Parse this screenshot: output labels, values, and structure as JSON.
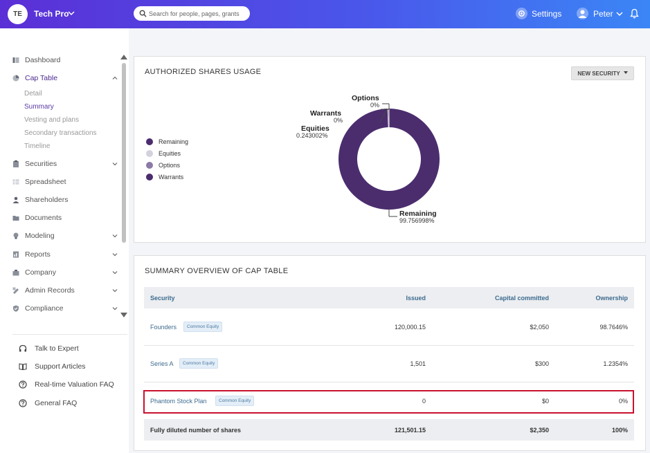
{
  "header": {
    "logo_initials": "TE",
    "company_name": "Tech Pro",
    "search_placeholder": "Search for people, pages, grants",
    "settings_label": "Settings",
    "user_name": "Peter"
  },
  "sidebar": {
    "items": [
      {
        "label": "Dashboard",
        "icon": "dashboard-icon"
      },
      {
        "label": "Cap Table",
        "icon": "pie-chart-icon",
        "expanded": true
      },
      {
        "label": "Securities",
        "icon": "clipboard-icon"
      },
      {
        "label": "Spreadsheet",
        "icon": "spreadsheet-icon"
      },
      {
        "label": "Shareholders",
        "icon": "person-icon"
      },
      {
        "label": "Documents",
        "icon": "folder-icon"
      },
      {
        "label": "Modeling",
        "icon": "lightbulb-icon"
      },
      {
        "label": "Reports",
        "icon": "reports-icon"
      },
      {
        "label": "Company",
        "icon": "building-icon"
      },
      {
        "label": "Admin Records",
        "icon": "records-icon"
      },
      {
        "label": "Compliance",
        "icon": "shield-check-icon"
      }
    ],
    "cap_table_sub": [
      "Detail",
      "Summary",
      "Vesting and plans",
      "Secondary transactions",
      "Timeline"
    ],
    "help": [
      "Talk to Expert",
      "Support Articles",
      "Real-time Valuation FAQ",
      "General FAQ"
    ]
  },
  "usage_card": {
    "title": "AUTHORIZED SHARES USAGE",
    "new_security_label": "NEW SECURITY",
    "legend": [
      {
        "label": "Remaining",
        "color": "#4b2d6e"
      },
      {
        "label": "Equities",
        "color": "#d5d1dc"
      },
      {
        "label": "Options",
        "color": "#8b7aa6"
      },
      {
        "label": "Warrants",
        "color": "#4b2d6e"
      }
    ],
    "donut": {
      "options": {
        "label": "Options",
        "value": "0%"
      },
      "warrants": {
        "label": "Warrants",
        "value": "0%"
      },
      "equities": {
        "label": "Equities",
        "value": "0.243002%"
      },
      "remaining": {
        "label": "Remaining",
        "value": "99.756998%"
      }
    }
  },
  "chart_data": {
    "type": "pie",
    "categories": [
      "Remaining",
      "Equities",
      "Options",
      "Warrants"
    ],
    "values": [
      99.756998,
      0.243002,
      0,
      0
    ],
    "title": "AUTHORIZED SHARES USAGE",
    "legend": "left"
  },
  "summary_card": {
    "title": "SUMMARY OVERVIEW OF CAP TABLE",
    "columns": [
      "Security",
      "Issued",
      "Capital committed",
      "Ownership"
    ],
    "rows": [
      {
        "security": "Founders",
        "tag": "Common Equity",
        "issued": "120,000.15",
        "capital": "$2,050",
        "ownership": "98.7646%"
      },
      {
        "security": "Series A",
        "tag": "Common Equity",
        "issued": "1,501",
        "capital": "$300",
        "ownership": "1.2354%"
      },
      {
        "security": "Phantom Stock Plan",
        "tag": "Common Equity",
        "issued": "0",
        "capital": "$0",
        "ownership": "0%"
      }
    ],
    "footer": {
      "label": "Fully diluted number of shares",
      "issued": "121,501.15",
      "capital": "$2,350",
      "ownership": "100%"
    }
  },
  "colors": {
    "accent": "#4b2a8f",
    "link": "#3d6b8f",
    "highlight": "#c8102e"
  }
}
